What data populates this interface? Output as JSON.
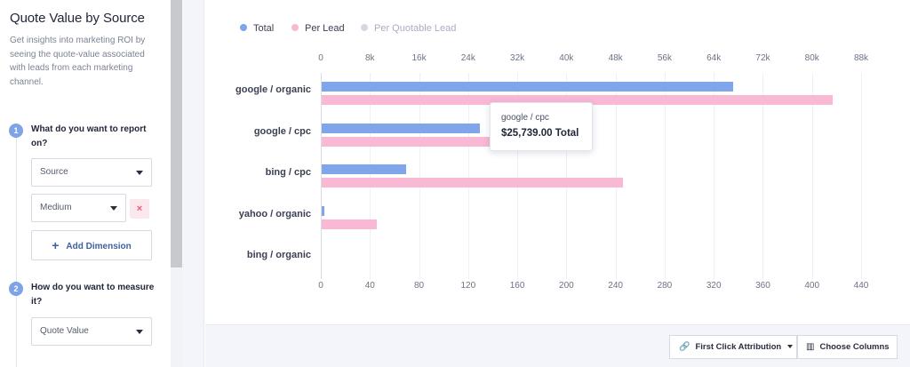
{
  "sidebar": {
    "title": "Quote Value by Source",
    "description": "Get insights into marketing ROI by seeing the quote-value associated with leads from each marketing channel.",
    "steps": [
      {
        "number": "1",
        "title": "What do you want to report on?"
      },
      {
        "number": "2",
        "title": "How do you want to measure it?"
      }
    ],
    "dimension_1": "Source",
    "dimension_2": "Medium",
    "remove_label": "×",
    "add_dimension": "Add Dimension",
    "add_icon": "+",
    "measure": "Quote Value"
  },
  "chart_data": {
    "type": "bar",
    "orientation": "horizontal",
    "legend": [
      {
        "name": "Total",
        "color": "#7fa6ea"
      },
      {
        "name": "Per Lead",
        "color": "#f9b8d3"
      },
      {
        "name": "Per Quotable Lead",
        "color": "#d5d8e4"
      }
    ],
    "categories": [
      "google / organic",
      "google / cpc",
      "bing / cpc",
      "yahoo / organic",
      "bing / organic"
    ],
    "series": [
      {
        "name": "Total",
        "axis": "top",
        "values": [
          67000,
          25739,
          13800,
          400,
          0
        ]
      },
      {
        "name": "Per Lead",
        "axis": "bottom",
        "values": [
          416,
          144,
          245,
          45,
          0
        ]
      }
    ],
    "top_axis": {
      "ticks": [
        "0",
        "8k",
        "16k",
        "24k",
        "32k",
        "40k",
        "48k",
        "56k",
        "64k",
        "72k",
        "80k",
        "88k"
      ],
      "range": [
        0,
        88000
      ]
    },
    "bottom_axis": {
      "ticks": [
        "0",
        "40",
        "80",
        "120",
        "160",
        "200",
        "240",
        "280",
        "320",
        "360",
        "400",
        "440"
      ],
      "range": [
        0,
        440
      ]
    }
  },
  "tooltip": {
    "label": "google / cpc",
    "value": "$25,739.00 Total"
  },
  "toolbar": {
    "attribution_label": "First Click Attribution",
    "attribution_icon": "🔗",
    "columns_label": "Choose Columns",
    "columns_icon": "▥"
  }
}
